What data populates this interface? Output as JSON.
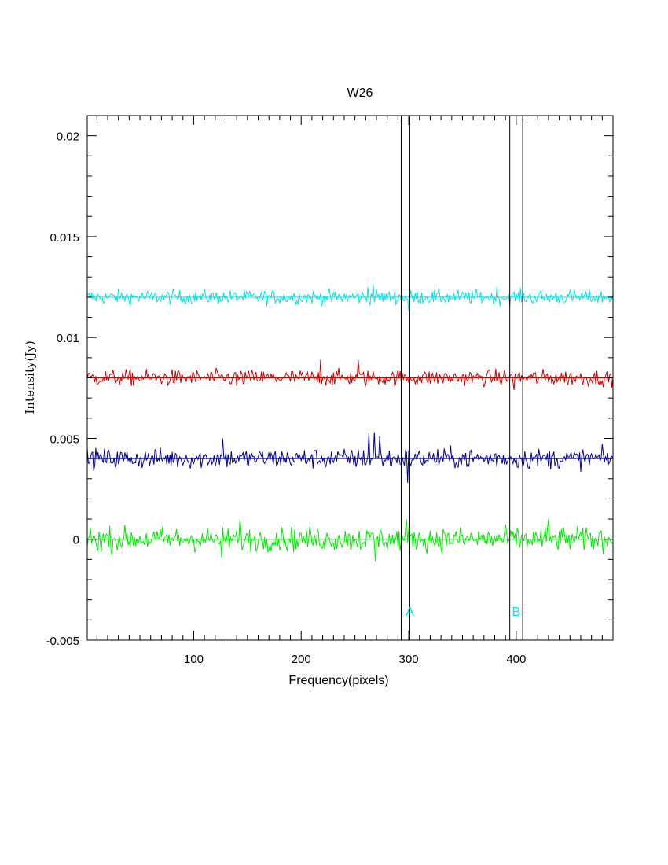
{
  "chart_data": {
    "type": "line",
    "title": "W26",
    "xlabel": "Frequency(pixels)",
    "ylabel": "Intensity(Jy)",
    "xlim": [
      1,
      490
    ],
    "ylim": [
      -0.005,
      0.021
    ],
    "x_ticks": [
      100,
      200,
      300,
      400
    ],
    "x_tick_labels": [
      "100",
      "200",
      "300",
      "400"
    ],
    "y_ticks": [
      -0.005,
      0,
      0.005,
      0.01,
      0.015,
      0.02
    ],
    "y_tick_labels": [
      "-0.005",
      "0",
      "0.005",
      "0.01",
      "0.015",
      "0.02"
    ],
    "grid": false,
    "legend": "none",
    "series": [
      {
        "color": "#00e5e5",
        "baseline": 0.012,
        "noise_rms": 0.00018,
        "spikes": [
          {
            "x": 262,
            "value": 0.0125
          },
          {
            "x": 267,
            "value": 0.0126
          },
          {
            "x": 300,
            "value": 0.0113
          },
          {
            "x": 382,
            "value": 0.0125
          }
        ]
      },
      {
        "color": "#cc0000",
        "baseline": 0.008,
        "noise_rms": 0.0002,
        "spikes": [
          {
            "x": 218,
            "value": 0.0089
          },
          {
            "x": 253,
            "value": 0.0089
          },
          {
            "x": 140,
            "value": 0.0076
          },
          {
            "x": 398,
            "value": 0.0074
          }
        ]
      },
      {
        "color": "#000099",
        "baseline": 0.004,
        "noise_rms": 0.00025,
        "spikes": [
          {
            "x": 127,
            "value": 0.005
          },
          {
            "x": 263,
            "value": 0.0053
          },
          {
            "x": 268,
            "value": 0.0053
          },
          {
            "x": 273,
            "value": 0.0051
          },
          {
            "x": 299,
            "value": 0.0028
          }
        ]
      },
      {
        "color": "#00e600",
        "baseline": 0.0,
        "noise_rms": 0.0003,
        "spikes": [
          {
            "x": 143,
            "value": 0.001
          },
          {
            "x": 126,
            "value": -0.0009
          },
          {
            "x": 269,
            "value": -0.0011
          },
          {
            "x": 298,
            "value": 0.001
          },
          {
            "x": 430,
            "value": 0.001
          }
        ]
      }
    ],
    "vertical_lines": [
      293,
      301,
      394,
      406
    ],
    "annotations": [
      {
        "text": "A",
        "x": 301,
        "y": -0.0038,
        "color": "#00e5e5"
      },
      {
        "text": "B",
        "x": 400,
        "y": -0.0038,
        "color": "#00e5e5"
      }
    ]
  }
}
